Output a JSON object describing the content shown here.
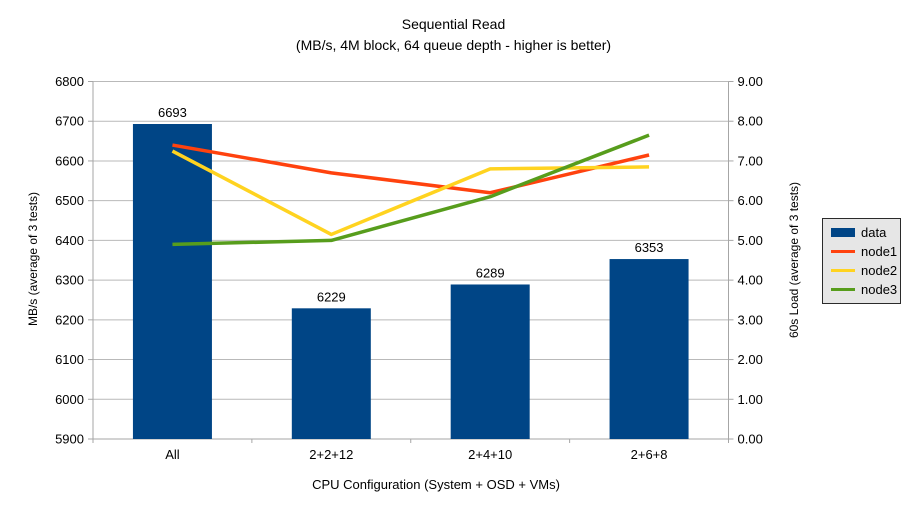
{
  "chart_data": {
    "type": "combo-bar-line",
    "title": "Sequential Read",
    "subtitle": "(MB/s, 4M block, 64 queue depth - higher is better)",
    "categories": [
      "All",
      "2+2+12",
      "2+4+10",
      "2+6+8"
    ],
    "x_axis_title": "CPU Configuration (System + OSD + VMs)",
    "left_axis": {
      "title": "MB/s (average of 3 tests)",
      "min": 5900,
      "max": 6800,
      "step": 100,
      "tick_labels": [
        "5900",
        "6000",
        "6100",
        "6200",
        "6300",
        "6400",
        "6500",
        "6600",
        "6700",
        "6800"
      ]
    },
    "right_axis": {
      "title": "60s Load (average of 3 tests)",
      "min": 0,
      "max": 9,
      "step": 1,
      "tick_labels": [
        "0.00",
        "1.00",
        "2.00",
        "3.00",
        "4.00",
        "5.00",
        "6.00",
        "7.00",
        "8.00",
        "9.00"
      ]
    },
    "bar_series": {
      "name": "data",
      "axis": "left",
      "color": "#004586",
      "values": [
        6693,
        6229,
        6289,
        6353
      ],
      "data_labels": [
        "6693",
        "6229",
        "6289",
        "6353"
      ]
    },
    "line_series": [
      {
        "name": "node1",
        "axis": "right",
        "color": "#FF420E",
        "values": [
          7.4,
          6.7,
          6.2,
          7.15
        ]
      },
      {
        "name": "node2",
        "axis": "right",
        "color": "#FFD320",
        "values": [
          7.25,
          5.15,
          6.8,
          6.85
        ]
      },
      {
        "name": "node3",
        "axis": "right",
        "color": "#579D1C",
        "values": [
          4.9,
          5.0,
          6.1,
          7.65
        ]
      }
    ],
    "legend": {
      "position": "right",
      "entries": [
        {
          "label": "data",
          "swatch": "rect",
          "color": "#004586"
        },
        {
          "label": "node1",
          "swatch": "line",
          "color": "#FF420E"
        },
        {
          "label": "node2",
          "swatch": "line",
          "color": "#FFD320"
        },
        {
          "label": "node3",
          "swatch": "line",
          "color": "#579D1C"
        }
      ]
    },
    "grid": true,
    "colors": {
      "background": "#ffffff",
      "gridline": "#b9b9b9",
      "axis_line": "#a6a6a6",
      "text": "#000000",
      "legend_bg": "#e6e6e6",
      "legend_border": "#2b2b2b"
    }
  }
}
